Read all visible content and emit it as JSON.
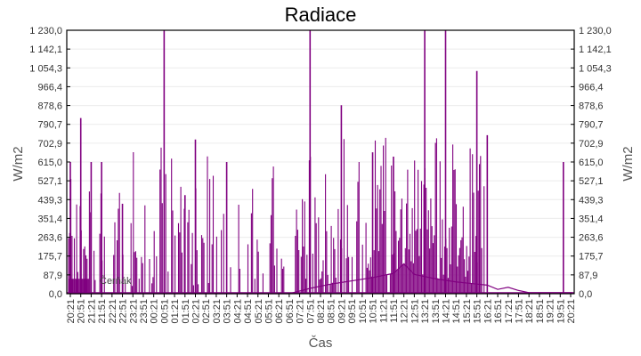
{
  "chart_data": {
    "type": "bar",
    "title": "Radiace",
    "xlabel": "Čas",
    "ylabel": "W/m2",
    "ylabel_right": "W/m2",
    "ylim": [
      0,
      1230.0
    ],
    "y_ticks": [
      "0,0",
      "87,9",
      "175,7",
      "263,6",
      "351,4",
      "439,3",
      "527,1",
      "615,0",
      "702,9",
      "790,7",
      "878,6",
      "966,4",
      "1 054,3",
      "1 142,1",
      "1 230,0"
    ],
    "x_ticks": [
      "20:21",
      "20:51",
      "21:21",
      "21:51",
      "22:21",
      "22:51",
      "23:21",
      "23:51",
      "00:21",
      "00:51",
      "01:21",
      "01:51",
      "02:21",
      "02:51",
      "03:21",
      "03:51",
      "04:21",
      "04:51",
      "05:21",
      "05:51",
      "06:21",
      "06:51",
      "07:21",
      "07:51",
      "08:21",
      "08:51",
      "09:21",
      "09:51",
      "10:51",
      "10:51",
      "11:21",
      "11:51",
      "12:21",
      "12:51",
      "13:21",
      "13:51",
      "14:21",
      "14:51",
      "15:21",
      "15:51",
      "16:21",
      "16:51",
      "17:21",
      "17:51",
      "18:21",
      "18:51",
      "19:21",
      "19:51",
      "20:21"
    ],
    "grid": true,
    "series": [
      {
        "name": "Radiace",
        "color": "#800080",
        "spike_peaks": [
          {
            "time": "20:21",
            "value": 615
          },
          {
            "time": "20:51",
            "value": 820
          },
          {
            "time": "21:21",
            "value": 615
          },
          {
            "time": "21:51",
            "value": 615
          },
          {
            "time": "22:51",
            "value": 420
          },
          {
            "time": "00:51",
            "value": 1230
          },
          {
            "time": "01:51",
            "value": 460
          },
          {
            "time": "02:21",
            "value": 720
          },
          {
            "time": "03:51",
            "value": 615
          },
          {
            "time": "07:51",
            "value": 1230
          },
          {
            "time": "09:21",
            "value": 880
          },
          {
            "time": "10:51",
            "value": 660
          },
          {
            "time": "11:51",
            "value": 640
          },
          {
            "time": "13:21",
            "value": 1230
          },
          {
            "time": "14:21",
            "value": 1230
          },
          {
            "time": "15:51",
            "value": 1040
          },
          {
            "time": "16:21",
            "value": 740
          },
          {
            "time": "20:00",
            "value": 615
          }
        ],
        "baseline_envelope": [
          {
            "time": "20:21",
            "value": 0
          },
          {
            "time": "06:51",
            "value": 0
          },
          {
            "time": "07:51",
            "value": 25
          },
          {
            "time": "08:51",
            "value": 45
          },
          {
            "time": "09:51",
            "value": 60
          },
          {
            "time": "10:51",
            "value": 75
          },
          {
            "time": "11:51",
            "value": 95
          },
          {
            "time": "12:21",
            "value": 140
          },
          {
            "time": "12:51",
            "value": 90
          },
          {
            "time": "13:51",
            "value": 70
          },
          {
            "time": "14:51",
            "value": 55
          },
          {
            "time": "15:51",
            "value": 45
          },
          {
            "time": "16:21",
            "value": 40
          },
          {
            "time": "16:51",
            "value": 20
          },
          {
            "time": "17:21",
            "value": 30
          },
          {
            "time": "17:51",
            "value": 15
          },
          {
            "time": "18:21",
            "value": 5
          },
          {
            "time": "20:21",
            "value": 5
          }
        ]
      }
    ],
    "overlay_label": "Čerňák"
  }
}
